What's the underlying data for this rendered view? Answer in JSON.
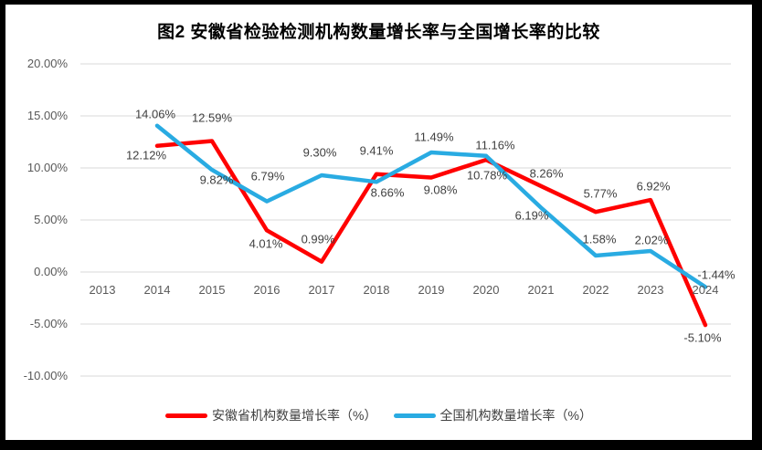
{
  "frame": {
    "background": "#000000",
    "canvas_background": "#FFFFFF"
  },
  "chart_data": {
    "type": "line",
    "title": "图2 安徽省检验检测机构数量增长率与全国增长率的比较",
    "categories": [
      "2013",
      "2014",
      "2015",
      "2016",
      "2017",
      "2018",
      "2019",
      "2020",
      "2021",
      "2022",
      "2023",
      "2024"
    ],
    "xlabel": "",
    "ylabel": "",
    "ylim": [
      -10,
      20
    ],
    "ytick_values": [
      20,
      15,
      10,
      5,
      0,
      -5,
      -10
    ],
    "ytick_labels": [
      "20.00%",
      "15.00%",
      "10.00%",
      "5.00%",
      "0.00%",
      "-5.00%",
      "-10.00%"
    ],
    "grid": "horizontal",
    "gridline_color": "#D9D9D9",
    "axis_label_color": "#595959",
    "data_label_color": "#404040",
    "legend_position": "bottom",
    "series": [
      {
        "name": "安徽省机构数量增长率（%）",
        "color": "#FF0000",
        "values": [
          null,
          12.12,
          12.59,
          4.01,
          0.99,
          9.41,
          9.08,
          10.78,
          8.26,
          5.77,
          6.92,
          -5.1
        ],
        "labels": [
          null,
          "12.12%",
          "12.59%",
          "4.01%",
          "0.99%",
          "9.41%",
          "9.08%",
          "10.78%",
          "8.26%",
          "5.77%",
          "6.92%",
          "-5.10%"
        ],
        "label_offsets": [
          null,
          [
            -12,
            10
          ],
          [
            0,
            -25
          ],
          [
            -1,
            15
          ],
          [
            -4,
            -25
          ],
          [
            0,
            -26
          ],
          [
            10,
            14
          ],
          [
            1,
            17
          ],
          [
            6,
            -14
          ],
          [
            5,
            -20
          ],
          [
            3,
            -15
          ],
          [
            -3,
            14
          ]
        ]
      },
      {
        "name": "全国机构数量增长率（%）",
        "color": "#29ABE2",
        "values": [
          null,
          14.06,
          9.82,
          6.79,
          9.3,
          8.66,
          11.49,
          11.16,
          6.19,
          1.58,
          2.02,
          -1.44
        ],
        "labels": [
          null,
          "14.06%",
          "9.82%",
          "6.79%",
          "9.30%",
          "8.66%",
          "11.49%",
          "11.16%",
          "6.19%",
          "1.58%",
          "2.02%",
          "-1.44%"
        ],
        "label_offsets": [
          null,
          [
            -2,
            -13
          ],
          [
            5,
            11
          ],
          [
            1,
            -28
          ],
          [
            -2,
            -25
          ],
          [
            12,
            12
          ],
          [
            3,
            -17
          ],
          [
            10,
            -12
          ],
          [
            -10,
            9
          ],
          [
            4,
            -18
          ],
          [
            1,
            -12
          ],
          [
            12,
            -13
          ]
        ]
      }
    ]
  }
}
